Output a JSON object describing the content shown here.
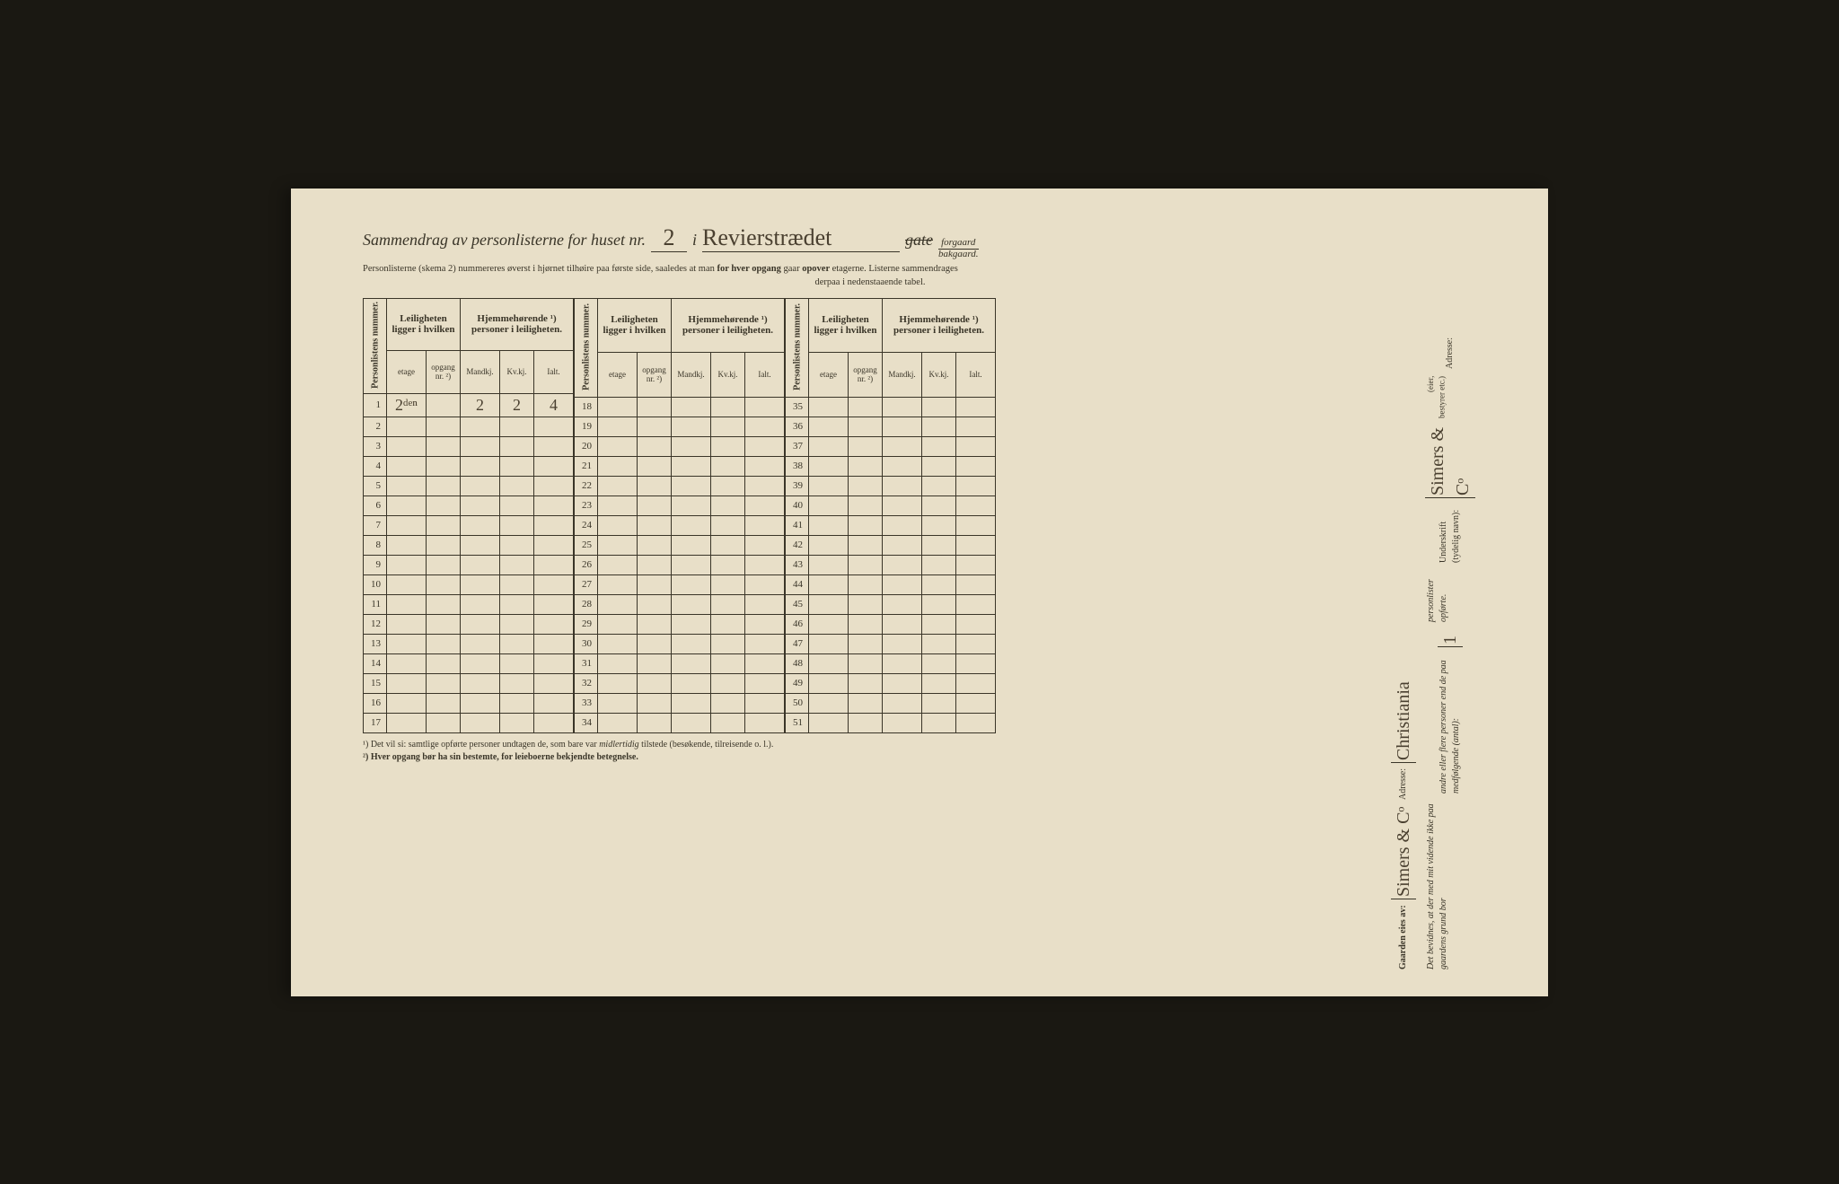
{
  "title": {
    "prefix": "Sammendrag av personlisterne for huset nr.",
    "house_nr": "2",
    "sep": "i",
    "street": "Revierstrædet",
    "gate_struck": "gate",
    "frac_top": "forgaard",
    "frac_bot": "bakgaard."
  },
  "subtitle1": "Personlisterne (skema 2) nummereres øverst i hjørnet tilhøire paa første side, saaledes at man",
  "subtitle1b": " for hver opgang ",
  "subtitle1c": "gaar",
  "subtitle1d": " opover ",
  "subtitle1e": "etagerne.  Listerne sammendrages",
  "subtitle2": "derpaa i nedenstaaende tabel.",
  "headers": {
    "personlist": "Personlistens nummer.",
    "leilighet": "Leiligheten ligger i hvilken",
    "hjemme": "Hjemmehørende ¹) personer i leiligheten.",
    "etage": "etage",
    "opgang": "opgang nr. ²)",
    "mandkj": "Mandkj.",
    "kvkj": "Kv.kj.",
    "ialt": "Ialt."
  },
  "row1": {
    "etage": "2ᵈᵉⁿ",
    "m": "2",
    "k": "2",
    "i": "4"
  },
  "footnote1": "¹) Det vil si: samtlige opførte personer undtagen de, som bare var ",
  "footnote1i": "midlertidig",
  "footnote1b": " tilstede (besøkende, tilreisende o. l.).",
  "footnote2": "²) Hver opgang bør ha sin bestemte, for leieboerne bekjendte betegnelse.",
  "side": {
    "gaarden": "Gaarden eies av:",
    "owner_sig": "Simers & Cᵒ",
    "adresse": "Adresse:",
    "adresse_val": "Christiania",
    "bevidnes1": "Det bevidnes, at der med mit vidende ikke paa gaardens grund bor",
    "bevidnes2": "andre eller flere personer end de paa medfølgende (antal):",
    "bevidnes3": "personlister opførte.",
    "bevidnes_num": "1",
    "underskrift": "Underskrift (tydelig navn):",
    "underskrift_sig": "Simers & Cᵒ",
    "role": "(eier, bestyrer etc.)",
    "adresse2": "Adresse:"
  }
}
